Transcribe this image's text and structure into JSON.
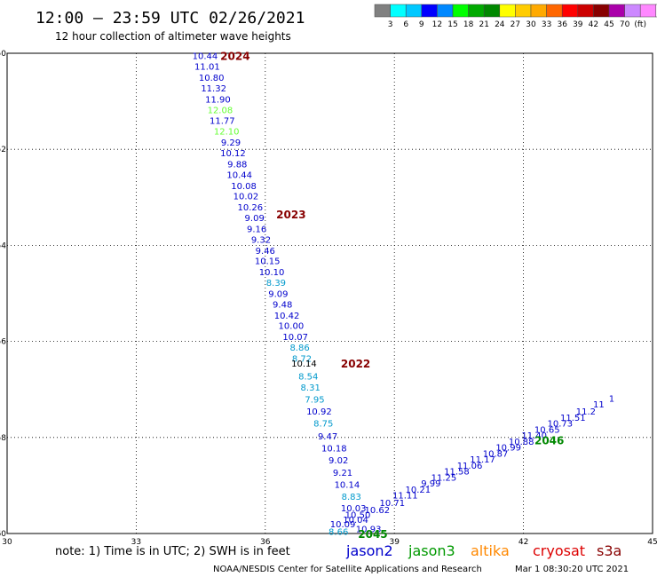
{
  "title": "12:00 — 23:59 UTC 02/26/2021",
  "subtitle": "12 hour collection of altimeter wave heights",
  "legend": {
    "colors": [
      "#808080",
      "#00ffff",
      "#00c8ff",
      "#0000ff",
      "#0088ff",
      "#00ff00",
      "#00aa00",
      "#008800",
      "#ffff00",
      "#ffcc00",
      "#ffaa00",
      "#ff6600",
      "#ff0000",
      "#cc0000",
      "#880000",
      "#aa00aa",
      "#cc88ff",
      "#ff88ff",
      "#ffffff",
      "#000000"
    ],
    "labels": [
      "3",
      "6",
      "9",
      "12",
      "15",
      "18",
      "21",
      "24",
      "27",
      "30",
      "33",
      "36",
      "39",
      "42",
      "45",
      "70",
      "(ft)"
    ]
  },
  "note": "note:  1) Time is in UTC; 2) SWH is in feet",
  "satellites": [
    {
      "name": "jason2",
      "color": "#0000cc"
    },
    {
      "name": "jason3",
      "color": "#009900"
    },
    {
      "name": "altika",
      "color": "#ff8800"
    },
    {
      "name": "cryosat",
      "color": "#dd0000"
    },
    {
      "name": "s3a",
      "color": "#880000"
    }
  ],
  "footer_left": "NOAA/NESDIS Center for Satellite Applications and Research",
  "footer_right": "Mar  1 08:30:20 UTC 2021",
  "chart_data": {
    "type": "scatter",
    "xlim": [
      30,
      45
    ],
    "ylim": [
      -60,
      -50
    ],
    "x_ticks": [
      30,
      33,
      36,
      39,
      42,
      45
    ],
    "y_ticks": [
      -50,
      -52,
      -54,
      -56,
      -58,
      -60
    ],
    "grid": true,
    "series": [
      {
        "name": "jason2",
        "color": "#0000cc",
        "points": [
          {
            "lon": 34.6,
            "lat": -50.05,
            "v": "10.44",
            "c": "#0000cc"
          },
          {
            "lon": 34.65,
            "lat": -50.27,
            "v": "11.01",
            "c": "#0000cc"
          },
          {
            "lon": 34.75,
            "lat": -50.5,
            "v": "10.80",
            "c": "#0000cc"
          },
          {
            "lon": 34.8,
            "lat": -50.72,
            "v": "11.32",
            "c": "#0000cc"
          },
          {
            "lon": 34.9,
            "lat": -50.95,
            "v": "11.90",
            "c": "#0000cc"
          },
          {
            "lon": 34.95,
            "lat": -51.17,
            "v": "12.08",
            "c": "#66ff33"
          },
          {
            "lon": 35.0,
            "lat": -51.4,
            "v": "11.77",
            "c": "#0000cc"
          },
          {
            "lon": 35.1,
            "lat": -51.62,
            "v": "12.10",
            "c": "#66ff33"
          },
          {
            "lon": 35.2,
            "lat": -51.85,
            "v": "9.29",
            "c": "#0000cc"
          },
          {
            "lon": 35.25,
            "lat": -52.07,
            "v": "10.12",
            "c": "#0000cc"
          },
          {
            "lon": 35.35,
            "lat": -52.3,
            "v": "9.88",
            "c": "#0000cc"
          },
          {
            "lon": 35.4,
            "lat": -52.52,
            "v": "10.44",
            "c": "#0000cc"
          },
          {
            "lon": 35.5,
            "lat": -52.75,
            "v": "10.08",
            "c": "#0000cc"
          },
          {
            "lon": 35.55,
            "lat": -52.97,
            "v": "10.02",
            "c": "#0000cc"
          },
          {
            "lon": 35.65,
            "lat": -53.2,
            "v": "10.26",
            "c": "#0000cc"
          },
          {
            "lon": 35.75,
            "lat": -53.42,
            "v": "9.09",
            "c": "#0000cc"
          },
          {
            "lon": 35.8,
            "lat": -53.65,
            "v": "9.16",
            "c": "#0000cc"
          },
          {
            "lon": 35.9,
            "lat": -53.87,
            "v": "9.32",
            "c": "#0000cc"
          },
          {
            "lon": 36.0,
            "lat": -54.1,
            "v": "9.46",
            "c": "#0000cc"
          },
          {
            "lon": 36.05,
            "lat": -54.32,
            "v": "10.15",
            "c": "#0000cc"
          },
          {
            "lon": 36.15,
            "lat": -54.55,
            "v": "10.10",
            "c": "#0000cc"
          },
          {
            "lon": 36.25,
            "lat": -54.77,
            "v": "8.39",
            "c": "#0099cc"
          },
          {
            "lon": 36.3,
            "lat": -55.0,
            "v": "9.09",
            "c": "#0000cc"
          },
          {
            "lon": 36.4,
            "lat": -55.22,
            "v": "9.48",
            "c": "#0000cc"
          },
          {
            "lon": 36.5,
            "lat": -55.45,
            "v": "10.42",
            "c": "#0000cc"
          },
          {
            "lon": 36.6,
            "lat": -55.67,
            "v": "10.00",
            "c": "#0000cc"
          },
          {
            "lon": 36.7,
            "lat": -55.9,
            "v": "10.07",
            "c": "#0000cc"
          },
          {
            "lon": 36.8,
            "lat": -56.12,
            "v": "8.86",
            "c": "#0099cc"
          },
          {
            "lon": 36.85,
            "lat": -56.35,
            "v": "8.72",
            "c": "#0099cc"
          },
          {
            "lon": 36.9,
            "lat": -56.45,
            "v": "10.14",
            "c": "#000000"
          },
          {
            "lon": 37.0,
            "lat": -56.72,
            "v": "8.54",
            "c": "#0099cc"
          },
          {
            "lon": 37.05,
            "lat": -56.95,
            "v": "8.31",
            "c": "#0099cc"
          },
          {
            "lon": 37.15,
            "lat": -57.2,
            "v": "7.95",
            "c": "#0099cc"
          },
          {
            "lon": 37.25,
            "lat": -57.45,
            "v": "10.92",
            "c": "#0000cc"
          },
          {
            "lon": 37.35,
            "lat": -57.7,
            "v": "8.75",
            "c": "#0099cc"
          },
          {
            "lon": 37.45,
            "lat": -57.97,
            "v": "9.47",
            "c": "#0000cc"
          },
          {
            "lon": 37.6,
            "lat": -58.22,
            "v": "10.18",
            "c": "#0000cc"
          },
          {
            "lon": 37.7,
            "lat": -58.47,
            "v": "9.02",
            "c": "#0000cc"
          },
          {
            "lon": 37.8,
            "lat": -58.72,
            "v": "9.21",
            "c": "#0000cc"
          },
          {
            "lon": 37.9,
            "lat": -58.97,
            "v": "10.14",
            "c": "#0000cc"
          },
          {
            "lon": 38.0,
            "lat": -59.22,
            "v": "8.83",
            "c": "#0099cc"
          },
          {
            "lon": 38.05,
            "lat": -59.46,
            "v": "10.03",
            "c": "#0000cc"
          },
          {
            "lon": 38.15,
            "lat": -59.6,
            "v": "10.50",
            "c": "#0000cc"
          },
          {
            "lon": 38.1,
            "lat": -59.7,
            "v": "10.04",
            "c": "#0000cc"
          },
          {
            "lon": 37.8,
            "lat": -59.8,
            "v": "10.09",
            "c": "#0000cc"
          },
          {
            "lon": 37.7,
            "lat": -59.95,
            "v": "8.66",
            "c": "#0099cc"
          },
          {
            "lon": 38.4,
            "lat": -59.9,
            "v": "10.93",
            "c": "#0000cc"
          }
        ]
      },
      {
        "name": "jason3",
        "color": "#0000cc",
        "points": [
          {
            "lon": 38.6,
            "lat": -59.5,
            "v": "10.62",
            "c": "#0000cc"
          },
          {
            "lon": 38.95,
            "lat": -59.35,
            "v": "10.71",
            "c": "#0000cc"
          },
          {
            "lon": 39.25,
            "lat": -59.2,
            "v": "11.11",
            "c": "#0000cc"
          },
          {
            "lon": 39.55,
            "lat": -59.08,
            "v": "10.21",
            "c": "#0000cc"
          },
          {
            "lon": 39.85,
            "lat": -58.95,
            "v": "9.99",
            "c": "#0000cc"
          },
          {
            "lon": 40.15,
            "lat": -58.83,
            "v": "11.25",
            "c": "#0000cc"
          },
          {
            "lon": 40.45,
            "lat": -58.7,
            "v": "11.58",
            "c": "#0000cc"
          },
          {
            "lon": 40.75,
            "lat": -58.58,
            "v": "11.06",
            "c": "#0000cc"
          },
          {
            "lon": 41.05,
            "lat": -58.45,
            "v": "11.17",
            "c": "#0000cc"
          },
          {
            "lon": 41.35,
            "lat": -58.33,
            "v": "10.87",
            "c": "#0000cc"
          },
          {
            "lon": 41.65,
            "lat": -58.2,
            "v": "10.99",
            "c": "#0000cc"
          },
          {
            "lon": 41.95,
            "lat": -58.08,
            "v": "10.88",
            "c": "#0000cc"
          },
          {
            "lon": 42.25,
            "lat": -57.95,
            "v": "11.40",
            "c": "#0000cc"
          },
          {
            "lon": 42.55,
            "lat": -57.83,
            "v": "10.65",
            "c": "#0000cc"
          },
          {
            "lon": 42.85,
            "lat": -57.7,
            "v": "10.73",
            "c": "#0000cc"
          },
          {
            "lon": 43.15,
            "lat": -57.58,
            "v": "11.51",
            "c": "#0000cc"
          },
          {
            "lon": 43.45,
            "lat": -57.45,
            "v": "11.2",
            "c": "#0000cc"
          },
          {
            "lon": 43.75,
            "lat": -57.3,
            "v": "11",
            "c": "#0000cc"
          },
          {
            "lon": 44.05,
            "lat": -57.18,
            "v": "1",
            "c": "#0000cc"
          }
        ]
      }
    ],
    "cycle_labels": [
      {
        "lon": 35.3,
        "lat": -50.05,
        "text": "2024",
        "color": "#880000"
      },
      {
        "lon": 36.6,
        "lat": -53.35,
        "text": "2023",
        "color": "#880000"
      },
      {
        "lon": 38.1,
        "lat": -56.45,
        "text": "2022",
        "color": "#880000"
      },
      {
        "lon": 42.6,
        "lat": -58.05,
        "text": "2046",
        "color": "#008800"
      },
      {
        "lon": 38.5,
        "lat": -60.0,
        "text": "2045",
        "color": "#008800"
      }
    ]
  }
}
